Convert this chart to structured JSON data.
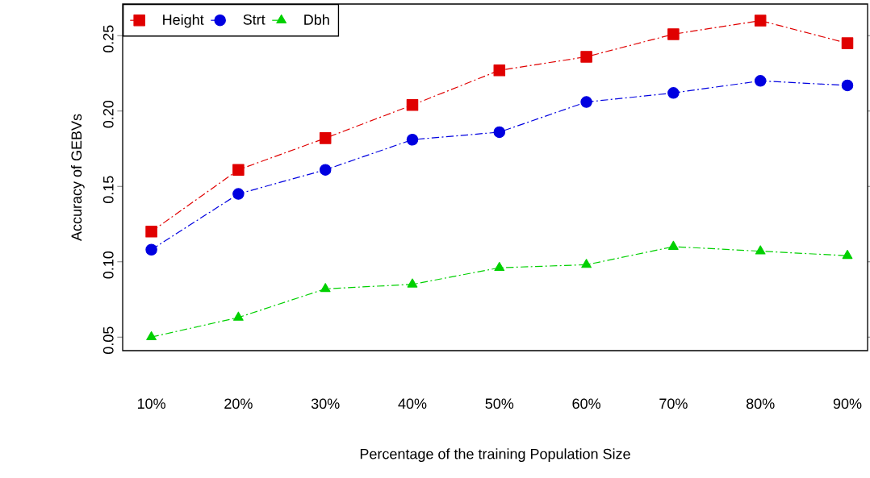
{
  "chart_data": {
    "type": "line",
    "xlabel": "Percentage of the training Population Size",
    "ylabel": "Accuracy of GEBVs",
    "categories": [
      "10%",
      "20%",
      "30%",
      "40%",
      "50%",
      "60%",
      "70%",
      "80%",
      "90%"
    ],
    "ylim": [
      0.041,
      0.271
    ],
    "yticks": [
      {
        "value": 0.05,
        "label": "0.05"
      },
      {
        "value": 0.1,
        "label": "0.10"
      },
      {
        "value": 0.15,
        "label": "0.15"
      },
      {
        "value": 0.2,
        "label": "0.20"
      },
      {
        "value": 0.25,
        "label": "0.25"
      }
    ],
    "legend": "top left",
    "line_style": "dashed",
    "series": [
      {
        "name": "Height",
        "color": "#e00000",
        "marker": "square",
        "values": [
          0.12,
          0.161,
          0.182,
          0.204,
          0.227,
          0.236,
          0.251,
          0.26,
          0.245
        ]
      },
      {
        "name": "Strt",
        "color": "#0000e0",
        "marker": "circle",
        "values": [
          0.108,
          0.145,
          0.161,
          0.181,
          0.186,
          0.206,
          0.212,
          0.22,
          0.217
        ]
      },
      {
        "name": "Dbh",
        "color": "#00d000",
        "marker": "triangle",
        "values": [
          0.05,
          0.063,
          0.082,
          0.085,
          0.096,
          0.098,
          0.11,
          0.107,
          0.104
        ]
      }
    ]
  }
}
